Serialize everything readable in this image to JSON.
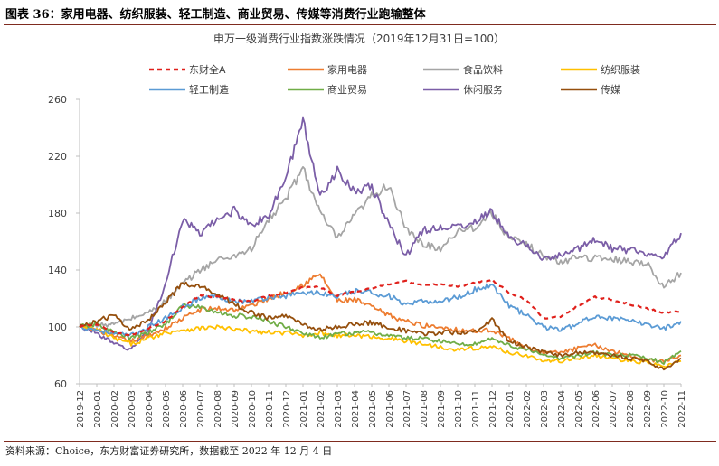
{
  "figure": {
    "title": "图表 36：家用电器、纺织服装、轻工制造、商业贸易、传媒等消费行业跑输整体",
    "source": "资料来源：Choice，东方财富证券研究所，数据截至 2022 年 12 月 4 日"
  },
  "chart_data": {
    "type": "line",
    "title": "申万一级消费行业指数涨跌情况（2019年12月31日=100）",
    "xlabel": "",
    "ylabel": "",
    "ylim": [
      60,
      260
    ],
    "yticks": [
      60,
      100,
      140,
      180,
      220,
      260
    ],
    "x_ticks": [
      "2019-12",
      "2020-01",
      "2020-02",
      "2020-03",
      "2020-04",
      "2020-05",
      "2020-06",
      "2020-07",
      "2020-08",
      "2020-09",
      "2020-10",
      "2020-11",
      "2020-12",
      "2021-01",
      "2021-02",
      "2021-03",
      "2021-04",
      "2021-05",
      "2021-06",
      "2021-07",
      "2021-08",
      "2021-09",
      "2021-10",
      "2021-11",
      "2021-12",
      "2022-01",
      "2022-02",
      "2022-03",
      "2022-04",
      "2022-05",
      "2022-06",
      "2022-07",
      "2022-08",
      "2022-09",
      "2022-10",
      "2022-11"
    ],
    "grid": false,
    "legend": "top",
    "series": [
      {
        "name": "东财全A",
        "color": "#e0201b",
        "dashed": true,
        "values": [
          100,
          102,
          96,
          94,
          99,
          104,
          114,
          122,
          121,
          119,
          118,
          122,
          124,
          128,
          128,
          122,
          125,
          127,
          130,
          132,
          129,
          130,
          128,
          131,
          133,
          124,
          119,
          106,
          107,
          115,
          121,
          119,
          116,
          113,
          110,
          111
        ]
      },
      {
        "name": "家用电器",
        "color": "#ed7d31",
        "dashed": false,
        "values": [
          100,
          98,
          93,
          90,
          94,
          99,
          106,
          112,
          113,
          112,
          115,
          120,
          124,
          130,
          137,
          118,
          119,
          114,
          108,
          104,
          101,
          100,
          98,
          97,
          98,
          92,
          85,
          82,
          82,
          85,
          87,
          83,
          80,
          77,
          76,
          80
        ]
      },
      {
        "name": "食品饮料",
        "color": "#a5a5a5",
        "dashed": false,
        "values": [
          100,
          101,
          102,
          106,
          110,
          118,
          130,
          140,
          147,
          150,
          155,
          175,
          190,
          212,
          180,
          162,
          178,
          192,
          200,
          168,
          158,
          155,
          168,
          170,
          180,
          162,
          158,
          150,
          145,
          150,
          148,
          148,
          146,
          145,
          128,
          138
        ]
      },
      {
        "name": "纺织服装",
        "color": "#ffc000",
        "dashed": false,
        "values": [
          100,
          98,
          92,
          88,
          92,
          96,
          98,
          99,
          100,
          98,
          97,
          96,
          96,
          94,
          96,
          94,
          94,
          93,
          92,
          90,
          88,
          86,
          84,
          85,
          86,
          82,
          80,
          76,
          76,
          78,
          80,
          78,
          76,
          75,
          72,
          76
        ]
      },
      {
        "name": "轻工制造",
        "color": "#5b9bd5",
        "dashed": false,
        "values": [
          100,
          98,
          95,
          94,
          100,
          106,
          114,
          120,
          122,
          118,
          118,
          121,
          122,
          124,
          124,
          121,
          125,
          124,
          122,
          115,
          118,
          118,
          121,
          126,
          130,
          115,
          108,
          100,
          98,
          102,
          108,
          106,
          104,
          102,
          99,
          104
        ]
      },
      {
        "name": "商业贸易",
        "color": "#70ad47",
        "dashed": false,
        "values": [
          100,
          102,
          96,
          92,
          96,
          102,
          115,
          114,
          110,
          108,
          107,
          104,
          100,
          96,
          92,
          95,
          96,
          96,
          94,
          92,
          92,
          90,
          88,
          88,
          92,
          87,
          84,
          80,
          78,
          80,
          82,
          80,
          80,
          78,
          75,
          83
        ]
      },
      {
        "name": "休闲服务",
        "color": "#7b5ea7",
        "dashed": false,
        "values": [
          100,
          96,
          88,
          84,
          98,
          130,
          176,
          165,
          175,
          182,
          172,
          178,
          205,
          245,
          192,
          210,
          196,
          198,
          172,
          150,
          168,
          170,
          170,
          174,
          181,
          162,
          158,
          147,
          150,
          155,
          162,
          155,
          154,
          152,
          150,
          166
        ]
      },
      {
        "name": "传媒",
        "color": "#954f0d",
        "dashed": false,
        "values": [
          100,
          104,
          108,
          98,
          105,
          118,
          130,
          128,
          124,
          116,
          110,
          106,
          108,
          102,
          98,
          100,
          102,
          103,
          100,
          97,
          95,
          96,
          96,
          97,
          105,
          90,
          86,
          82,
          80,
          82,
          82,
          80,
          78,
          76,
          70,
          78
        ]
      }
    ]
  }
}
